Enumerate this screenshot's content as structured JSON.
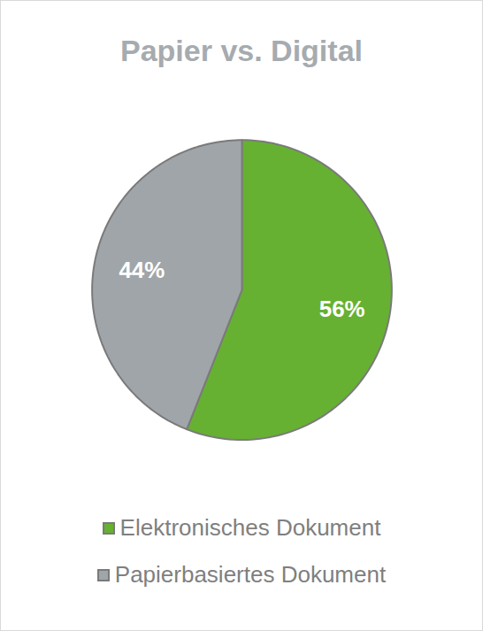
{
  "chart_data": {
    "type": "pie",
    "title": "Papier vs. Digital",
    "categories": [
      "Elektronisches Dokument",
      "Papierbasiertes Dokument"
    ],
    "values": [
      56,
      44
    ],
    "value_labels": [
      "56%",
      "44%"
    ],
    "colors": [
      "#66b132",
      "#a0a5a9"
    ],
    "data_labels": true,
    "legend": "bottom"
  }
}
